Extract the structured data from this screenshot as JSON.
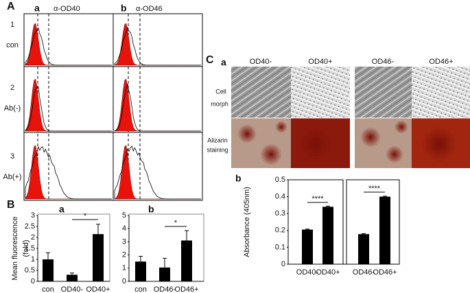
{
  "panel_a": {
    "label": "A",
    "columns": [
      {
        "letter": "a",
        "title": "α-OD40"
      },
      {
        "letter": "b",
        "title": "α-OD46"
      }
    ],
    "rows": [
      {
        "number": "1",
        "label": "con"
      },
      {
        "number": "2",
        "label": "Ab(-)"
      },
      {
        "number": "3",
        "label": "Ab(+)"
      }
    ]
  },
  "panel_b": {
    "label": "B",
    "letters": [
      "a",
      "b"
    ]
  },
  "panel_c": {
    "label": "C",
    "letter_a": "a",
    "letter_b": "b",
    "columns": [
      "OD40-",
      "OD40+",
      "OD46-",
      "OD46+"
    ],
    "rows": [
      [
        "Cell",
        "morph"
      ],
      [
        "Alizarin",
        "staining"
      ]
    ]
  },
  "chart_data": [
    {
      "type": "bar",
      "ylabel": [
        "Mean fluorescence",
        "(fold)"
      ],
      "categories": [
        "con",
        "OD40-",
        "OD40+"
      ],
      "values": [
        1.0,
        0.3,
        2.15
      ],
      "errors": [
        0.3,
        0.08,
        0.45
      ],
      "color": "#000000",
      "ylim": [
        0,
        3
      ],
      "yticks": [
        0,
        0.5,
        1,
        1.5,
        2,
        2.5,
        3
      ],
      "annotations": [
        "*"
      ]
    },
    {
      "type": "bar",
      "categories": [
        "con",
        "OD46-",
        "OD46+"
      ],
      "values": [
        1.5,
        1.05,
        3.1
      ],
      "errors": [
        0.4,
        0.7,
        0.75
      ],
      "color": "#000000",
      "ylim": [
        0,
        5
      ],
      "yticks": [
        0,
        1,
        2,
        3,
        4,
        5
      ],
      "annotations": [
        "*"
      ]
    },
    {
      "type": "bar",
      "ylabel": [
        "Absorbance (405nm)"
      ],
      "categories": [
        "OD40-",
        "OD40+",
        "OD46-",
        "OD46+"
      ],
      "values": [
        0.205,
        0.34,
        0.178,
        0.4
      ],
      "errors": [
        0.003,
        0.004,
        0.003,
        0.003
      ],
      "color": "#000000",
      "ylim": [
        0,
        0.5
      ],
      "yticks": [
        0,
        0.1,
        0.2,
        0.3,
        0.4,
        0.5
      ],
      "annotations": [
        "****",
        "****"
      ]
    }
  ]
}
